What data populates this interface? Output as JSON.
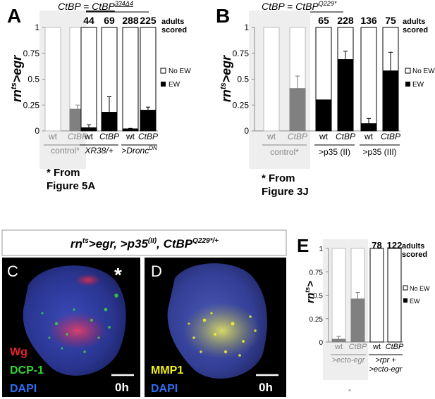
{
  "panels": {
    "A": {
      "letter": "A",
      "header": "CtBP = CtBP",
      "header_sup": "334Δ4",
      "ylabel_main": "rn",
      "ylabel_sup": "ts",
      "ylabel_tail": ">egr",
      "counts_label": [
        "adults",
        "scored"
      ],
      "footnote": [
        "* From",
        "Figure 5A"
      ]
    },
    "B": {
      "letter": "B",
      "header": "CtBP = CtBP",
      "header_sup": "Q229*",
      "ylabel_main": "rn",
      "ylabel_sup": "ts",
      "ylabel_tail": ">egr",
      "counts_label": [
        "adults",
        "scored"
      ],
      "footnote": [
        "* From",
        "Figure 3J"
      ]
    },
    "E": {
      "letter": "E",
      "ylabel_main": "rn",
      "ylabel_sup": "ts",
      "ylabel_tail": ">",
      "counts_label": [
        "adults",
        "scored"
      ],
      "asterisk": "*"
    },
    "banner": {
      "main": "rn",
      "sup1": "ts",
      "mid": ">egr, >p35",
      "sup2": "(II)",
      "tail": ", CtBP",
      "sup3": "Q229*/+"
    },
    "C": {
      "letter": "C",
      "asterisk": "*",
      "stains": [
        {
          "text": "Wg",
          "color": "#e8232a"
        },
        {
          "text": "DCP-1",
          "color": "#33d633"
        },
        {
          "text": "DAPI",
          "color": "#2f6bf0"
        }
      ],
      "time": "0h"
    },
    "D": {
      "letter": "D",
      "stains": [
        {
          "text": "MMP1",
          "color": "#f2f21a"
        },
        {
          "text": "DAPI",
          "color": "#2f6bf0"
        }
      ],
      "time": "0h"
    }
  },
  "legend": {
    "no_ew": "No EW",
    "ew": "EW",
    "no_ew_color": "#ffffff",
    "ew_color": "#000000",
    "control_color": "#808080"
  },
  "chart_data": [
    {
      "panel": "A",
      "type": "bar",
      "stacked": true,
      "ylim": [
        0,
        1
      ],
      "yticks": [
        0,
        0.25,
        0.5,
        0.75,
        1
      ],
      "categories": [
        "wt",
        "CtBP",
        "wt",
        "CtBP",
        "wt",
        "CtBP"
      ],
      "groups": [
        {
          "label": "control*",
          "span": [
            0,
            1
          ],
          "shaded": true
        },
        {
          "label": "XR38/+",
          "span": [
            2,
            3
          ],
          "shaded": false
        },
        {
          "label": ">Dronc",
          "sup": "DN",
          "span": [
            4,
            5
          ],
          "shaded": false
        }
      ],
      "counts": [
        "",
        "",
        "44",
        "69",
        "288",
        "225"
      ],
      "series": [
        {
          "name": "EW",
          "values": [
            0,
            0.21,
            0.03,
            0.18,
            0.02,
            0.2
          ],
          "errors": [
            0,
            0.04,
            0.03,
            0.15,
            0.005,
            0.03
          ]
        },
        {
          "name": "No EW",
          "values": [
            0,
            0,
            0.97,
            0.82,
            0.98,
            0.8
          ]
        }
      ]
    },
    {
      "panel": "B",
      "type": "bar",
      "stacked": true,
      "ylim": [
        0,
        1
      ],
      "yticks": [
        0,
        0.25,
        0.5,
        0.75,
        1
      ],
      "categories": [
        "wt",
        "CtBP",
        "wt",
        "CtBP",
        "wt",
        "CtBP"
      ],
      "groups": [
        {
          "label": "control*",
          "span": [
            0,
            1
          ],
          "shaded": true
        },
        {
          "label": ">p35 (II)",
          "span": [
            2,
            3
          ],
          "shaded": false
        },
        {
          "label": ">p35 (III)",
          "span": [
            4,
            5
          ],
          "shaded": false
        }
      ],
      "counts": [
        "",
        "",
        "65",
        "228",
        "136",
        "75"
      ],
      "series": [
        {
          "name": "EW",
          "values": [
            0,
            0.41,
            0.3,
            0.69,
            0.07,
            0.58
          ],
          "errors": [
            0,
            0.12,
            0,
            0.08,
            0.05,
            0.18
          ]
        },
        {
          "name": "No EW",
          "values": [
            0,
            0,
            0.7,
            0.31,
            0.93,
            0.42
          ]
        }
      ]
    },
    {
      "panel": "E",
      "type": "bar",
      "stacked": true,
      "ylim": [
        0,
        1
      ],
      "yticks": [
        0,
        0.25,
        0.5,
        0.75,
        1
      ],
      "categories": [
        "wt",
        "CtBP",
        "wt",
        "CtBP"
      ],
      "groups": [
        {
          "label": ">ecto-egr",
          "span": [
            0,
            1
          ],
          "shaded": true
        },
        {
          "label": ">rpr +\n>ecto-egr",
          "span": [
            2,
            3
          ],
          "shaded": false
        }
      ],
      "counts": [
        "",
        "",
        "78",
        "122"
      ],
      "series": [
        {
          "name": "EW",
          "values": [
            0.03,
            0.46,
            0,
            0
          ],
          "errors": [
            0.03,
            0.07,
            0,
            0
          ]
        },
        {
          "name": "No EW",
          "values": [
            0,
            0,
            1,
            1
          ]
        }
      ]
    }
  ]
}
